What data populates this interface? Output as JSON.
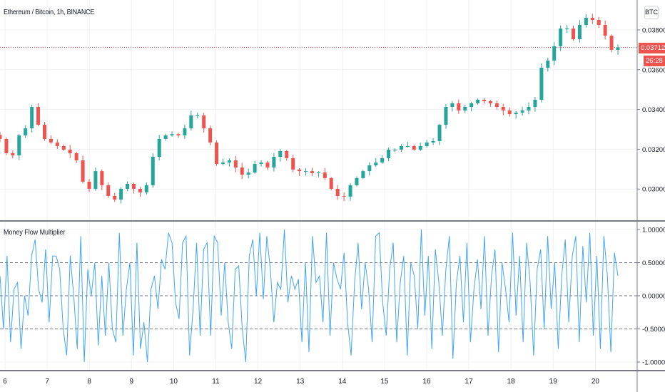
{
  "header": {
    "symbol_title": "Ethereum / Bitcoin, 1h, BINANCE",
    "currency_button": "BTC"
  },
  "price_labels": {
    "last_price": "0.037123",
    "countdown": "26:28"
  },
  "colors": {
    "up": "#26a69a",
    "down": "#ef5350",
    "indicator": "#42a5f5",
    "grid": "#eef0f3",
    "axis": "#787b86",
    "last_price_line": "#ef5350"
  },
  "chart_data": [
    {
      "type": "candlestick",
      "title": "Ethereum / Bitcoin, 1h, BINANCE",
      "x_tick_labels": [
        "6",
        "7",
        "8",
        "9",
        "10",
        "11",
        "12",
        "13",
        "14",
        "15",
        "16",
        "17",
        "18",
        "19",
        "20"
      ],
      "y_tick_labels": [
        "0.038000",
        "0.036000",
        "0.034000",
        "0.032000",
        "0.030000"
      ],
      "y_ticks": [
        0.038,
        0.036,
        0.034,
        0.032,
        0.03
      ],
      "ylim": [
        0.0284,
        0.0392
      ],
      "last_price": 0.037123,
      "grid": true,
      "closes": [
        0.03252,
        0.0318,
        0.03169,
        0.0327,
        0.03305,
        0.03413,
        0.03323,
        0.03252,
        0.03234,
        0.03216,
        0.03198,
        0.0318,
        0.03144,
        0.03037,
        0.03001,
        0.0309,
        0.03019,
        0.02965,
        0.02947,
        0.03001,
        0.03026,
        0.03001,
        0.02983,
        0.03019,
        0.03162,
        0.03252,
        0.0327,
        0.03276,
        0.0327,
        0.03305,
        0.0337,
        0.0337,
        0.03305,
        0.03234,
        0.03126,
        0.03133,
        0.03144,
        0.03108,
        0.03072,
        0.03083,
        0.03126,
        0.03133,
        0.03108,
        0.03162,
        0.03191,
        0.03155,
        0.03098,
        0.0309,
        0.0309,
        0.0308,
        0.03083,
        0.03055,
        0.03001,
        0.02965,
        0.02962,
        0.03019,
        0.03055,
        0.0309,
        0.03119,
        0.03133,
        0.03155,
        0.03198,
        0.03198,
        0.03216,
        0.03216,
        0.03198,
        0.03216,
        0.03234,
        0.03241,
        0.03323,
        0.03413,
        0.03431,
        0.03395,
        0.03413,
        0.03431,
        0.03449,
        0.03442,
        0.03431,
        0.03413,
        0.03395,
        0.03377,
        0.03384,
        0.03395,
        0.03413,
        0.03449,
        0.0361,
        0.03646,
        0.03718,
        0.03807,
        0.03807,
        0.03753,
        0.03825,
        0.03861,
        0.0385,
        0.03825,
        0.03771,
        0.037,
        0.03712
      ]
    },
    {
      "type": "line",
      "title": "Money Flow Multiplier",
      "y_tick_labels": [
        "1.000000",
        "0.500000",
        "0.000000",
        "-0.500000",
        "-1.000000"
      ],
      "y_ticks": [
        1,
        0.5,
        0,
        -0.5,
        -1
      ],
      "ylim": [
        -1.1,
        1.1
      ],
      "dashed_levels": [
        0.5,
        0,
        -0.5
      ],
      "values": [
        0.3,
        -0.5,
        0.6,
        -0.7,
        0.1,
        0.2,
        -0.8,
        0.0,
        -0.3,
        0.6,
        0.85,
        0.1,
        -0.1,
        0.7,
        -0.4,
        0.6,
        0.6,
        0.4,
        -0.5,
        -0.9,
        0.6,
        0.0,
        -0.8,
        0.9,
        -1.0,
        0.4,
        0.0,
        0.5,
        -0.75,
        0.3,
        -0.6,
        0.5,
        -0.5,
        -0.7,
        0.95,
        -0.6,
        0.1,
        0.5,
        -0.9,
        0.8,
        -0.8,
        -0.4,
        -1.0,
        0.1,
        0.3,
        -0.2,
        0.55,
        0.4,
        0.95,
        0.8,
        -0.1,
        -0.35,
        0.8,
        0.9,
        -0.9,
        -0.2,
        0.8,
        -0.6,
        0.7,
        0.8,
        -0.6,
        0.9,
        0.8,
        -0.3,
        0.5,
        -0.4,
        -0.8,
        0.4,
        0.45,
        -0.5,
        -1.0,
        0.6,
        0.85,
        0.0,
        0.95,
        -0.05,
        0.9,
        0.4,
        -0.4,
        0.2,
        0.1,
        1.0,
        -0.1,
        0.3,
        0.1,
        0.25,
        -0.7,
        0.5,
        -0.85,
        0.9,
        0.2,
        0.3,
        -0.4,
        0.95,
        -0.6,
        0.5,
        0.25,
        0.1,
        0.65,
        -0.4,
        -0.9,
        0.2,
        0.8,
        -0.2,
        0.5,
        0.1,
        -0.7,
        0.9,
        0.95,
        -0.1,
        -0.6,
        0.4,
        0.8,
        -0.7,
        0.2,
        0.6,
        -0.9,
        0.5,
        0.3,
        -0.5,
        1.0,
        -0.3,
        0.6,
        -0.8,
        0.7,
        0.2,
        -0.6,
        0.4,
        0.9,
        -0.95,
        0.2,
        0.6,
        -0.4,
        0.8,
        -0.7,
        0.1,
        0.55,
        -0.2,
        0.9,
        -0.6,
        0.3,
        0.7,
        -0.85,
        0.5,
        0.1,
        -0.4,
        0.95,
        -0.3,
        0.6,
        -0.7,
        0.8,
        0.2,
        -0.9,
        0.4,
        0.7,
        -0.5,
        0.9,
        -0.2,
        0.5,
        -0.8,
        0.3,
        0.85,
        -0.4,
        0.6,
        0.9,
        -0.7,
        0.75,
        -0.1,
        0.95,
        -0.6,
        0.6,
        -0.8,
        0.9,
        0.3,
        -0.85,
        0.65,
        0.3
      ]
    }
  ]
}
